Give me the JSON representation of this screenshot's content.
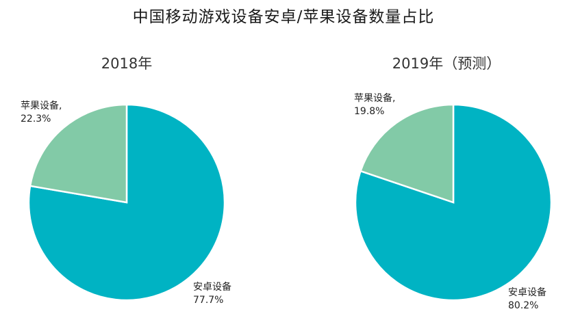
{
  "title": "中国移动游戏设备安卓/苹果设备数量占比",
  "colors": {
    "android": "#00b3c3",
    "apple": "#82caa7",
    "slice_border": "#ffffff"
  },
  "chart_data": [
    {
      "type": "pie",
      "title": "2018年",
      "slices": [
        {
          "label": "安卓设备",
          "value_text": "77.7%",
          "value": 77.7,
          "color": "#00b3c3"
        },
        {
          "label": "苹果设备,",
          "value_text": "22.3%",
          "value": 22.3,
          "color": "#82caa7"
        }
      ]
    },
    {
      "type": "pie",
      "title": "2019年（预测）",
      "slices": [
        {
          "label": "安卓设备",
          "value_text": "80.2%",
          "value": 80.2,
          "color": "#00b3c3"
        },
        {
          "label": "苹果设备,",
          "value_text": "19.8%",
          "value": 19.8,
          "color": "#82caa7"
        }
      ]
    }
  ]
}
